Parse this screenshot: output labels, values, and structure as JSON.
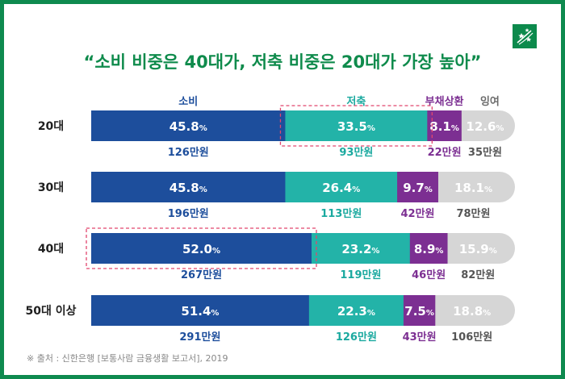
{
  "chart_data": {
    "type": "bar",
    "stacked": true,
    "orientation": "horizontal",
    "title": "“소비 비중은 40대가, 저축 비중은 20대가 가장 높아”",
    "categories": [
      "20대",
      "30대",
      "40대",
      "50대 이상"
    ],
    "series": [
      {
        "name": "소비",
        "values": [
          45.8,
          45.8,
          52.0,
          51.4
        ],
        "amounts": [
          "126만원",
          "196만원",
          "267만원",
          "291만원"
        ],
        "color": "#1d4e9c",
        "label_color": "#1d4e9c"
      },
      {
        "name": "저축",
        "values": [
          33.5,
          26.4,
          23.2,
          22.3
        ],
        "amounts": [
          "93만원",
          "113만원",
          "119만원",
          "126만원"
        ],
        "color": "#23b3a8",
        "label_color": "#1aa99f"
      },
      {
        "name": "부채상환",
        "values": [
          8.1,
          9.7,
          8.9,
          7.5
        ],
        "amounts": [
          "22만원",
          "42만원",
          "46만원",
          "43만원"
        ],
        "color": "#7c2f92",
        "label_color": "#7c2f92"
      },
      {
        "name": "잉여",
        "values": [
          12.6,
          18.1,
          15.9,
          18.8
        ],
        "amounts": [
          "35만원",
          "78만원",
          "82만원",
          "106만원"
        ],
        "color": "#d6d6d6",
        "label_color": "#555555"
      }
    ],
    "value_suffix": "%",
    "xlim": [
      0,
      100
    ],
    "highlights": [
      {
        "category": "20대",
        "series": "저축"
      },
      {
        "category": "40대",
        "series": "소비"
      }
    ]
  },
  "source": "※ 출처 : 신한은행 [보통사람 금융생활 보고서], 2019",
  "logo_icon": "bnp-paribas-stars-icon",
  "colors": {
    "frame": "#0e8a4f",
    "title": "#0f8b4c",
    "highlight": "#e2466e"
  }
}
